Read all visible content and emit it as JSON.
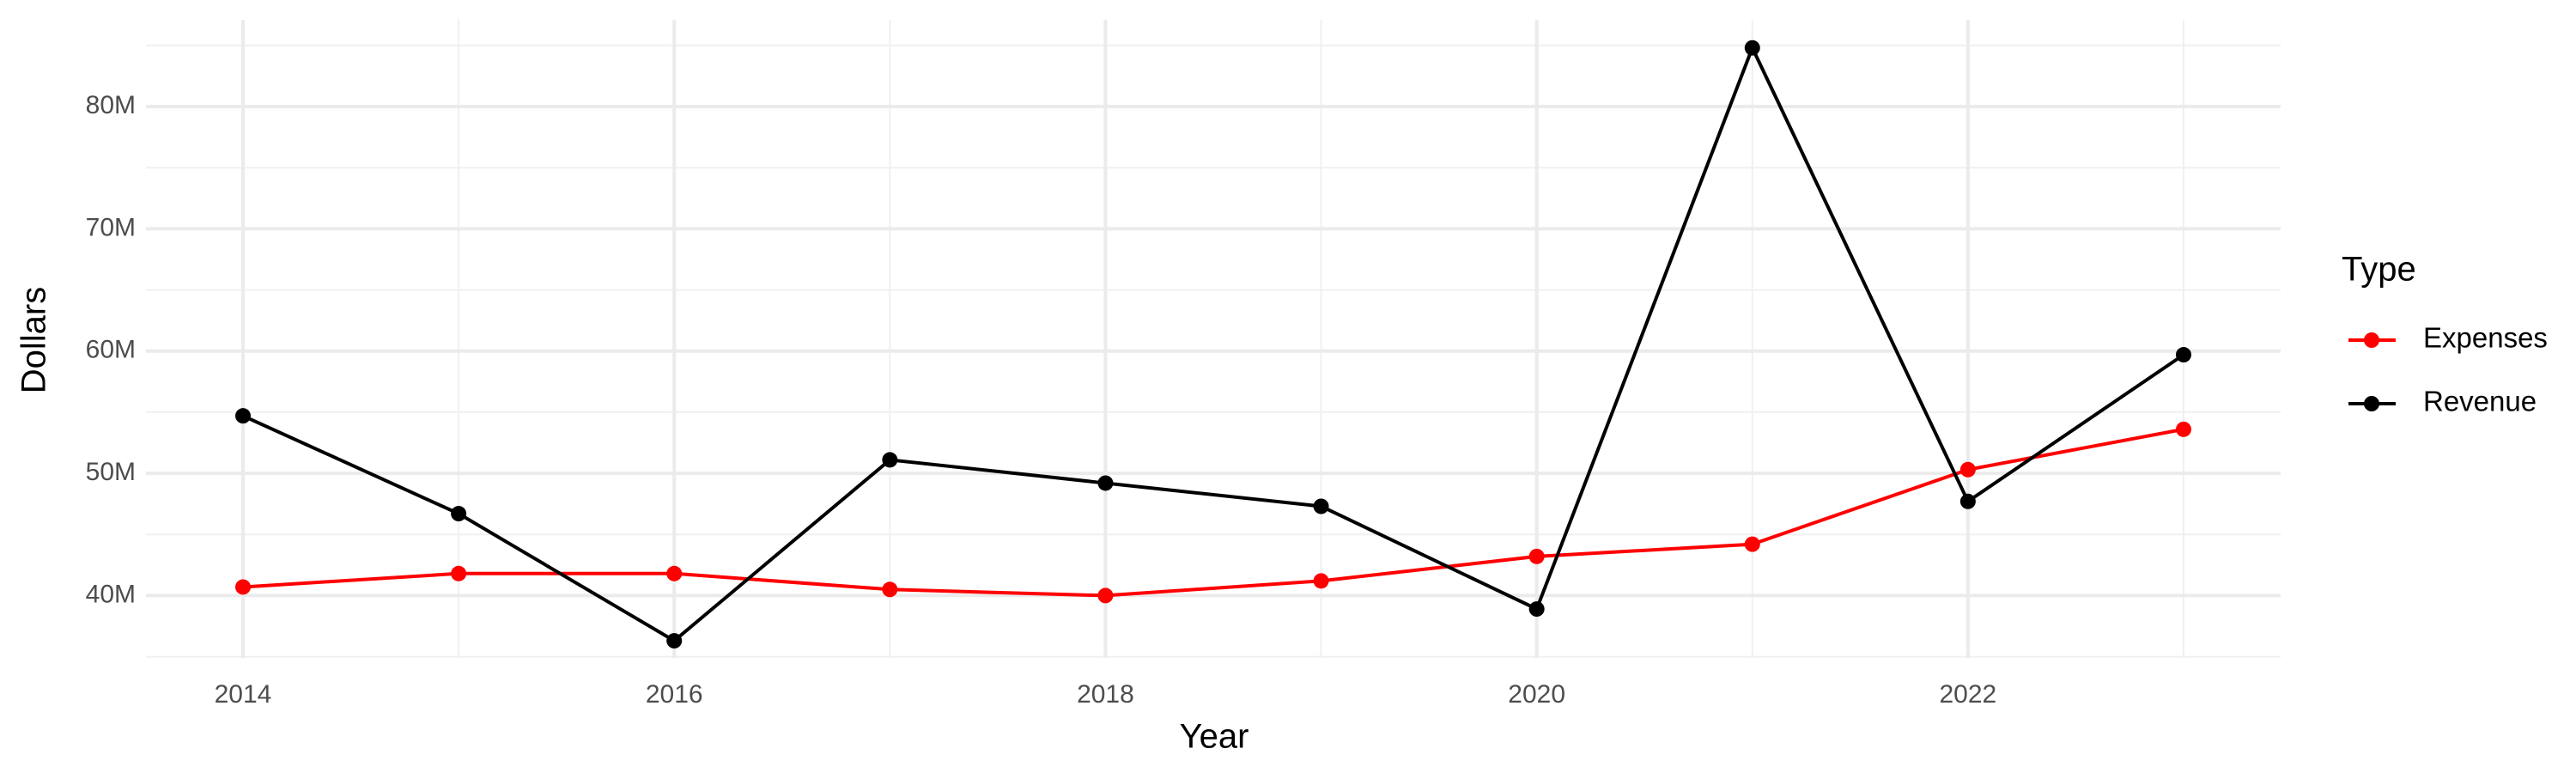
{
  "chart_data": {
    "type": "line",
    "x": [
      2014,
      2015,
      2016,
      2017,
      2018,
      2019,
      2020,
      2021,
      2022,
      2023
    ],
    "series": [
      {
        "name": "Expenses",
        "color": "#ff0000",
        "values": [
          40700000,
          41800000,
          41800000,
          40500000,
          40000000,
          41200000,
          43200000,
          44200000,
          50300000,
          53600000
        ]
      },
      {
        "name": "Revenue",
        "color": "#000000",
        "values": [
          54700000,
          46700000,
          36300000,
          51100000,
          49200000,
          47300000,
          38900000,
          84800000,
          47700000,
          59700000
        ]
      }
    ],
    "x_label": "Year",
    "y_label": "Dollars",
    "legend_title": "Type",
    "xlim": [
      2013.55,
      2023.45
    ],
    "xticks": [
      2014,
      2016,
      2018,
      2020,
      2022
    ],
    "ylim": [
      34900000,
      87100000
    ],
    "yticks": [
      {
        "value": 40000000,
        "label": "40M"
      },
      {
        "value": 50000000,
        "label": "50M"
      },
      {
        "value": 60000000,
        "label": "60M"
      },
      {
        "value": 70000000,
        "label": "70M"
      },
      {
        "value": 80000000,
        "label": "80M"
      }
    ],
    "grid": true,
    "legend": "right"
  }
}
